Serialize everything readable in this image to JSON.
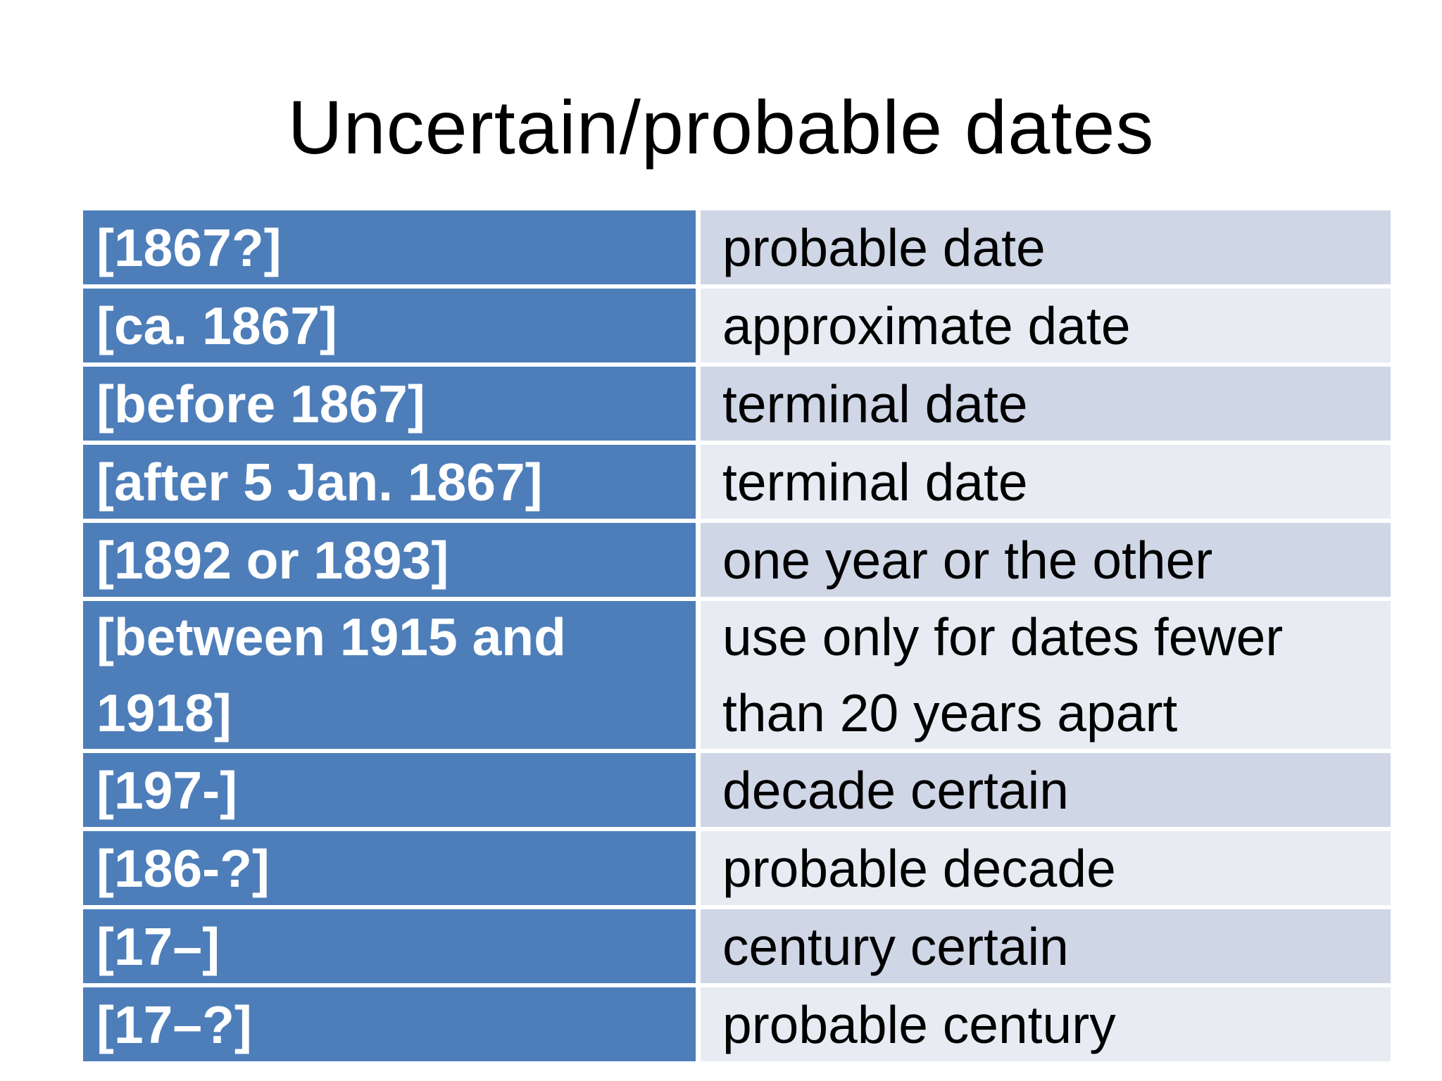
{
  "title": "Uncertain/probable dates",
  "table": {
    "rows": [
      {
        "code": "[1867?]",
        "meaning": "probable date"
      },
      {
        "code": "[ca. 1867]",
        "meaning": "approximate date"
      },
      {
        "code": "[before 1867]",
        "meaning": "terminal date"
      },
      {
        "code": "[after 5 Jan. 1867]",
        "meaning": "terminal date"
      },
      {
        "code": "[1892 or 1893]",
        "meaning": "one year or the other"
      },
      {
        "code": "[between 1915 and 1918]",
        "meaning": "use only for dates fewer than 20 years apart"
      },
      {
        "code": "[197-]",
        "meaning": "decade certain"
      },
      {
        "code": "[186-?]",
        "meaning": "probable decade"
      },
      {
        "code": "[17–]",
        "meaning": "century certain"
      },
      {
        "code": "[17–?]",
        "meaning": "probable century"
      }
    ]
  },
  "colors": {
    "accent_blue": "#4d7eba",
    "band_dark": "#cfd6e6",
    "band_light": "#e9ebf3",
    "code_text": "#ffffff",
    "meaning_text": "#000000",
    "title_text": "#000000",
    "background": "#ffffff"
  }
}
